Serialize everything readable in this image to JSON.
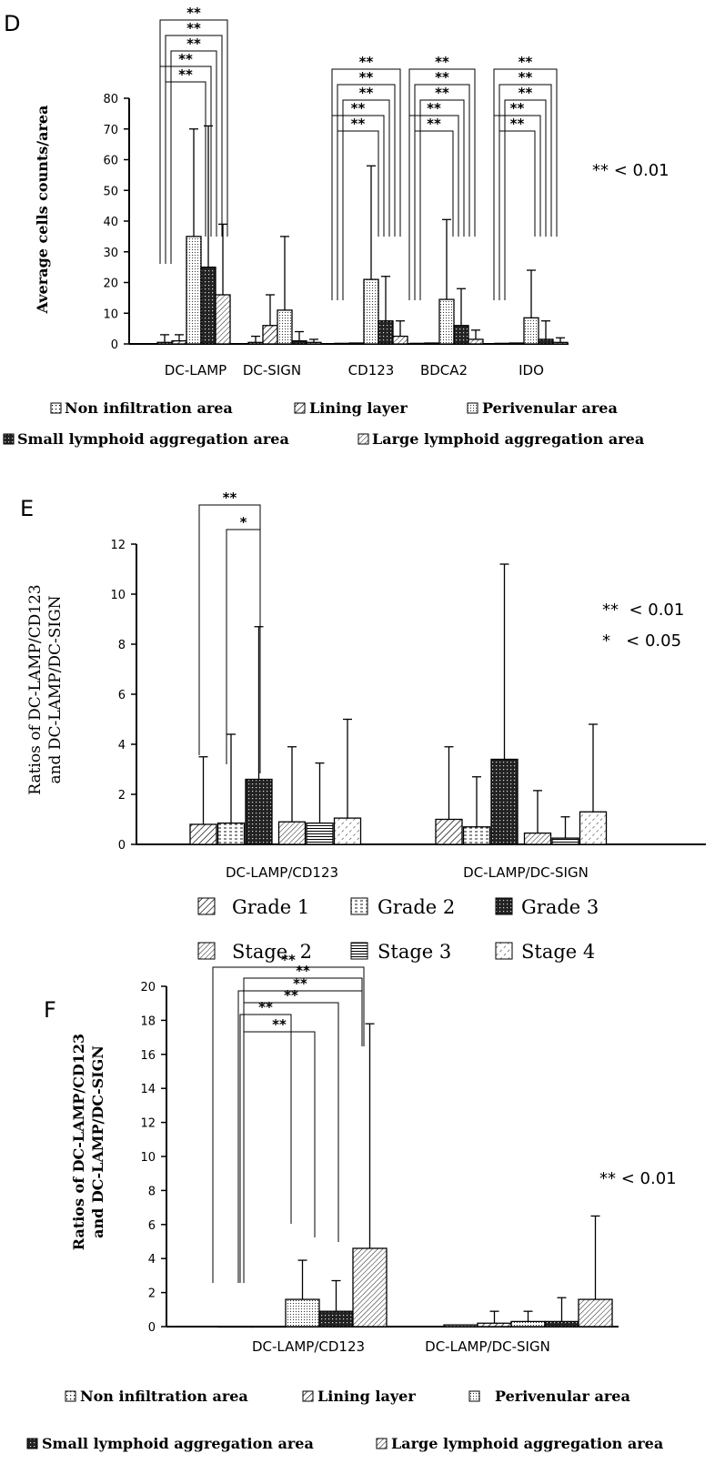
{
  "chart_data": [
    {
      "panel": "D",
      "type": "bar",
      "ylabel": "Average cells counts/area",
      "ylim": [
        0,
        80
      ],
      "yticks": [
        "0",
        "10",
        "20",
        "30",
        "40",
        "50",
        "60",
        "70",
        "80"
      ],
      "categories": [
        "DC-LAMP",
        "DC-SIGN",
        "CD123",
        "BDCA2",
        "IDO"
      ],
      "series": [
        {
          "name": "Non infiltration area",
          "values": [
            0.5,
            0.5,
            0.2,
            0.2,
            0.2
          ],
          "errors": [
            2.5,
            2.0,
            0,
            0,
            0
          ]
        },
        {
          "name": "Lining layer",
          "values": [
            1,
            6,
            0.3,
            0.3,
            0.3
          ],
          "errors": [
            2,
            10,
            0,
            0,
            0
          ]
        },
        {
          "name": "Perivenular area",
          "values": [
            35,
            11,
            21,
            14.5,
            8.5
          ],
          "errors": [
            35,
            24,
            37,
            26,
            15.5
          ]
        },
        {
          "name": "Small lymphoid aggregation area",
          "values": [
            25,
            1,
            7.5,
            6,
            1.5
          ],
          "errors": [
            46,
            3,
            14.5,
            12,
            6
          ]
        },
        {
          "name": "Large lymphoid aggregation area",
          "values": [
            16,
            0.5,
            2.5,
            1.5,
            0.5
          ],
          "errors": [
            23,
            1,
            5,
            3,
            1.5
          ]
        }
      ],
      "significance_marks": [
        "**",
        "**",
        "**",
        "**",
        "**"
      ],
      "note": "** < 0.01"
    },
    {
      "panel": "E",
      "type": "bar",
      "ylabel_lines": [
        "Ratios of DC-LAMP/CD123",
        "and DC-LAMP/DC-SIGN"
      ],
      "ylim": [
        0,
        12
      ],
      "yticks": [
        "0",
        "2",
        "4",
        "6",
        "8",
        "10",
        "12"
      ],
      "categories": [
        "DC-LAMP/CD123",
        "DC-LAMP/DC-SIGN"
      ],
      "series": [
        {
          "name": "Grade 1",
          "values": [
            0.8,
            1.0
          ],
          "errors": [
            2.7,
            2.9
          ]
        },
        {
          "name": "Grade 2",
          "values": [
            0.85,
            0.7
          ],
          "errors": [
            3.55,
            2.0
          ]
        },
        {
          "name": "Grade 3",
          "values": [
            2.6,
            3.4
          ],
          "errors": [
            6.1,
            7.8
          ]
        },
        {
          "name": "Stage  2",
          "values": [
            0.9,
            0.45
          ],
          "errors": [
            3.0,
            1.7
          ]
        },
        {
          "name": "Stage 3",
          "values": [
            0.85,
            0.25
          ],
          "errors": [
            2.4,
            0.85
          ]
        },
        {
          "name": "Stage 4",
          "values": [
            1.05,
            1.3
          ],
          "errors": [
            3.95,
            3.5
          ]
        }
      ],
      "significance_marks": [
        "**",
        "*"
      ],
      "note_lines": [
        "**  < 0.01",
        "*   < 0.05"
      ]
    },
    {
      "panel": "F",
      "type": "bar",
      "ylabel_lines": [
        "Ratios of DC-LAMP/CD123",
        "and DC-LAMP/DC-SIGN"
      ],
      "ylim": [
        0,
        20
      ],
      "yticks": [
        "0",
        "2",
        "4",
        "6",
        "8",
        "10",
        "12",
        "14",
        "16",
        "18",
        "20"
      ],
      "categories": [
        "DC-LAMP/CD123",
        "DC-LAMP/DC-SIGN"
      ],
      "series": [
        {
          "name": "Non infiltration area",
          "values": [
            0,
            0.1
          ],
          "errors": [
            0,
            0
          ]
        },
        {
          "name": "Lining layer",
          "values": [
            0,
            0.2
          ],
          "errors": [
            0,
            0.7
          ]
        },
        {
          "name": "Perivenular area",
          "values": [
            1.6,
            0.3
          ],
          "errors": [
            2.3,
            0.6
          ]
        },
        {
          "name": "Small lymphoid aggregation area",
          "values": [
            0.9,
            0.3
          ],
          "errors": [
            1.8,
            1.4
          ]
        },
        {
          "name": "Large lymphoid aggregation area",
          "values": [
            4.6,
            1.6
          ],
          "errors": [
            13.2,
            4.9
          ]
        }
      ],
      "significance_marks": [
        "**",
        "**",
        "**",
        "**",
        "**",
        "**"
      ],
      "note": "** < 0.01"
    }
  ],
  "colors": {
    "ink": "#000000",
    "background": "#ffffff"
  }
}
